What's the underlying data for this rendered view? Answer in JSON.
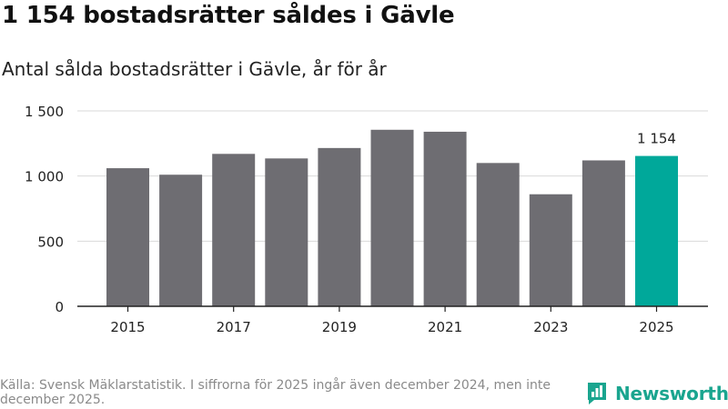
{
  "page": {
    "title": "1 154 bostadsrätter såldes i Gävle",
    "subtitle": "Antal sålda bostadsrätter i Gävle, år för år",
    "source": "Källa: Svensk Mäklarstatistik. I siffrorna för 2025 ingår även december 2024, men inte december 2025.",
    "brand": "Newsworthy"
  },
  "colors": {
    "bar": "#6e6d72",
    "highlight": "#00a89a",
    "grid": "#d9d9d9",
    "axis": "#222222",
    "brand": "#1aa58f"
  },
  "icons": {
    "logo": "newsworthy-logo-icon"
  },
  "chart_data": {
    "type": "bar",
    "title": "Antal sålda bostadsrätter i Gävle, år för år",
    "xlabel": "",
    "ylabel": "",
    "categories": [
      "2015",
      "2016",
      "2017",
      "2018",
      "2019",
      "2020",
      "2021",
      "2022",
      "2023",
      "2024",
      "2025"
    ],
    "values": [
      1060,
      1010,
      1170,
      1135,
      1215,
      1355,
      1340,
      1100,
      860,
      1120,
      1154
    ],
    "highlight_index": 10,
    "highlight_label": "1 154",
    "ylim": [
      0,
      1500
    ],
    "yticks": [
      0,
      500,
      1000,
      1500
    ],
    "ytick_labels": [
      "0",
      "500",
      "1 000",
      "1 500"
    ],
    "xtick_labels": [
      "2015",
      "2017",
      "2019",
      "2021",
      "2023",
      "2025"
    ],
    "grid": true,
    "legend": "none"
  }
}
